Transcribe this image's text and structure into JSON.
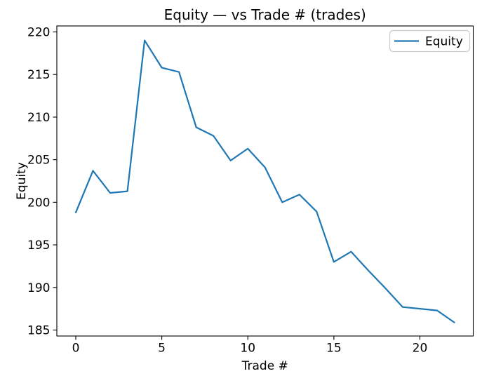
{
  "chart_data": {
    "type": "line",
    "title": "Equity — vs Trade # (trades)",
    "xlabel": "Trade #",
    "ylabel": "Equity",
    "x": [
      0,
      1,
      2,
      3,
      4,
      5,
      6,
      7,
      8,
      9,
      10,
      11,
      12,
      13,
      14,
      15,
      16,
      17,
      18,
      19,
      20,
      21,
      22
    ],
    "series": [
      {
        "name": "Equity",
        "color": "#1f77b4",
        "values": [
          198.8,
          203.7,
          201.1,
          201.3,
          219.0,
          215.8,
          215.3,
          208.8,
          207.8,
          204.9,
          206.3,
          204.1,
          200.0,
          200.9,
          198.9,
          193.0,
          194.2,
          192.0,
          189.9,
          187.7,
          187.5,
          187.3,
          185.9
        ]
      }
    ],
    "xticks": [
      0,
      5,
      10,
      15,
      20
    ],
    "yticks": [
      185,
      190,
      195,
      200,
      205,
      210,
      215,
      220
    ],
    "xlim": [
      -1.1,
      23.1
    ],
    "ylim": [
      184.3,
      220.7
    ],
    "grid": false,
    "legend": {
      "position": "upper right",
      "entries": [
        "Equity"
      ],
      "border_color": "#cccccc",
      "background": "#ffffff"
    },
    "background": "#ffffff",
    "text_color": "#000000",
    "axis_color": "#000000"
  }
}
